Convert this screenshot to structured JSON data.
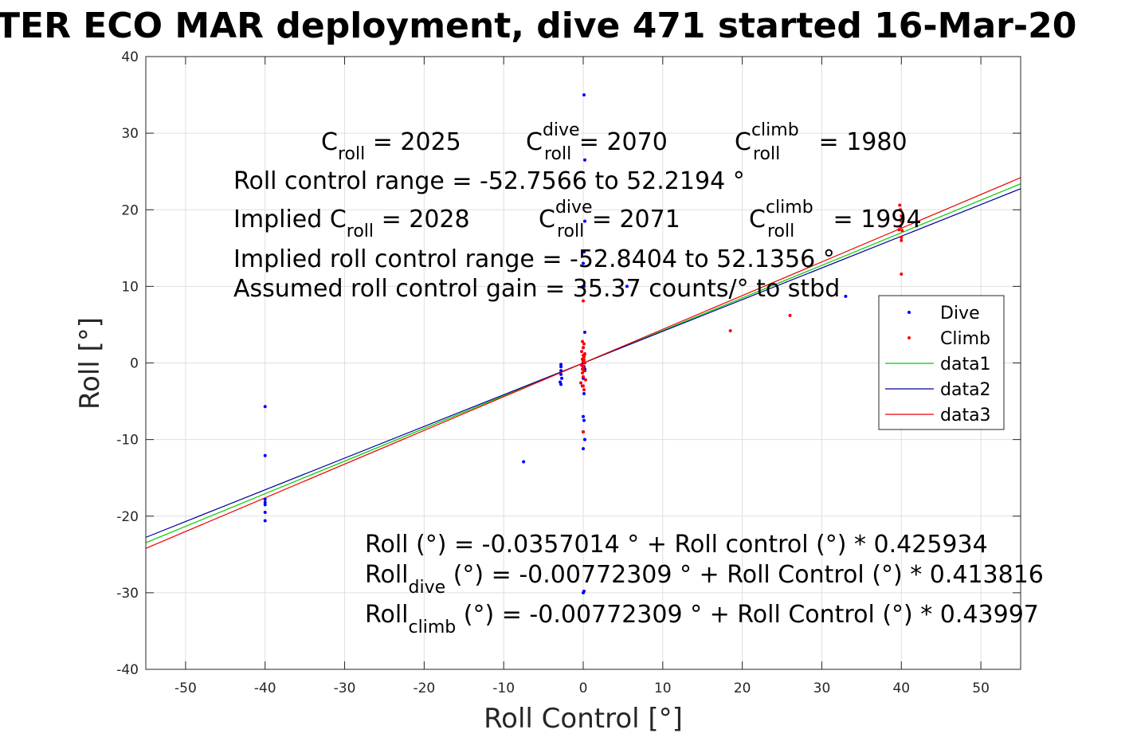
{
  "chart_data": {
    "type": "scatter",
    "title": "TER ECO MAR deployment, dive 471 started 16-Mar-20",
    "xlabel": "Roll Control [°]",
    "ylabel": "Roll [°]",
    "xlim": [
      -55,
      55
    ],
    "ylim": [
      -40,
      40
    ],
    "xticks": [
      -50,
      -40,
      -30,
      -20,
      -10,
      0,
      10,
      20,
      30,
      40,
      50
    ],
    "yticks": [
      -40,
      -30,
      -20,
      -10,
      0,
      10,
      20,
      30,
      40
    ],
    "grid": true,
    "legend_position": "right",
    "series": [
      {
        "name": "Dive",
        "kind": "points",
        "color": "#0000ff",
        "x": [
          0.1,
          0.2,
          0.2,
          0.1,
          0.0,
          0.1,
          0.2,
          0.0,
          0.1,
          -0.1,
          0.0,
          0.1,
          0.2,
          0.0,
          -0.1,
          0.1,
          0.0,
          0.1,
          0.0,
          0.2,
          0.0,
          0.1,
          0.0,
          0.2,
          -2.8,
          -2.8,
          -2.8,
          -2.7,
          -2.9,
          -2.8,
          -2.8,
          -40.0,
          -40.0,
          -40.0,
          -40.0,
          -40.0,
          -40.0,
          -40.0,
          -7.5,
          5.5,
          33.0
        ],
        "y": [
          35.0,
          26.5,
          18.5,
          14.5,
          13.0,
          10.0,
          4.0,
          2.0,
          1.0,
          0.5,
          0.0,
          -0.5,
          -1.0,
          -2.0,
          -3.0,
          -4.0,
          -7.0,
          -7.5,
          -9.0,
          -10.0,
          -11.2,
          -29.8,
          -30.0,
          -0.8,
          -0.2,
          -1.0,
          -1.5,
          -2.0,
          -2.5,
          -2.8,
          -0.5,
          -5.7,
          -12.1,
          -17.8,
          -18.2,
          -18.5,
          -19.5,
          -20.6,
          -12.9,
          10.0,
          8.7
        ]
      },
      {
        "name": "Climb",
        "kind": "points",
        "color": "#ff0000",
        "x": [
          0.0,
          -0.1,
          0.1,
          0.0,
          -0.2,
          0.2,
          0.0,
          0.1,
          -0.1,
          0.0,
          0.2,
          -0.2,
          0.0,
          0.1,
          -0.1,
          0.0,
          0.3,
          -0.3,
          0.0,
          0.1,
          -0.1,
          0.0,
          0.1,
          18.5,
          26.0,
          39.8,
          39.9,
          40.0,
          40.0,
          40.1,
          39.7,
          40.0,
          40.0,
          40.0,
          39.9
        ],
        "y": [
          8.1,
          2.8,
          2.5,
          2.0,
          1.5,
          1.2,
          1.0,
          0.8,
          0.5,
          0.2,
          0.0,
          -0.3,
          -0.6,
          -1.0,
          -1.3,
          -1.8,
          -2.2,
          -2.6,
          -3.0,
          -3.5,
          -0.8,
          -9.0,
          0.4,
          4.2,
          6.2,
          20.6,
          20.0,
          19.2,
          18.5,
          17.3,
          17.4,
          16.4,
          16.0,
          11.6,
          17.8
        ]
      },
      {
        "name": "data1",
        "kind": "line",
        "color": "#00cc00",
        "x": [
          -55,
          55
        ],
        "y": [
          -23.46,
          23.39
        ]
      },
      {
        "name": "data2",
        "kind": "line",
        "color": "#000099",
        "x": [
          -55,
          55
        ],
        "y": [
          -22.77,
          22.75
        ]
      },
      {
        "name": "data3",
        "kind": "line",
        "color": "#ee0000",
        "x": [
          -55,
          55
        ],
        "y": [
          -24.21,
          24.19
        ]
      }
    ],
    "annotations_top": {
      "c_roll": {
        "base": "C",
        "sub": "roll",
        "value": " = 2025"
      },
      "c_roll_dive": {
        "base": "C",
        "sup": "dive",
        "sub": "roll",
        "value": " = 2070"
      },
      "c_roll_climb": {
        "base": "C",
        "sup": "climb",
        "sub": "roll",
        "value": " = 1980"
      },
      "range": "Roll control range = -52.7566 to 52.2194 °",
      "implied_prefix": "Implied ",
      "implied_c_roll": {
        "base": "C",
        "sub": "roll",
        "value": " = 2028"
      },
      "implied_c_roll_dive": {
        "base": "C",
        "sup": "dive",
        "sub": "roll",
        "value": " = 2071"
      },
      "implied_c_roll_climb": {
        "base": "C",
        "sup": "climb",
        "sub": "roll",
        "value": " = 1994"
      },
      "implied_range": "Implied roll control range = -52.8404 to 52.1356 °",
      "gain": "Assumed roll control gain = 35.37 counts/° to stbd"
    },
    "annotations_bottom": {
      "fit_all": "Roll (°) = -0.0357014 ° + Roll control (°) * 0.425934",
      "fit_dive_base": "Roll",
      "fit_dive_sub": "dive",
      "fit_dive_rest": " (°) = -0.00772309 ° + Roll Control (°) * 0.413816",
      "fit_climb_base": "Roll",
      "fit_climb_sub": "climb",
      "fit_climb_rest": " (°) = -0.00772309 ° + Roll Control (°) * 0.43997"
    }
  }
}
